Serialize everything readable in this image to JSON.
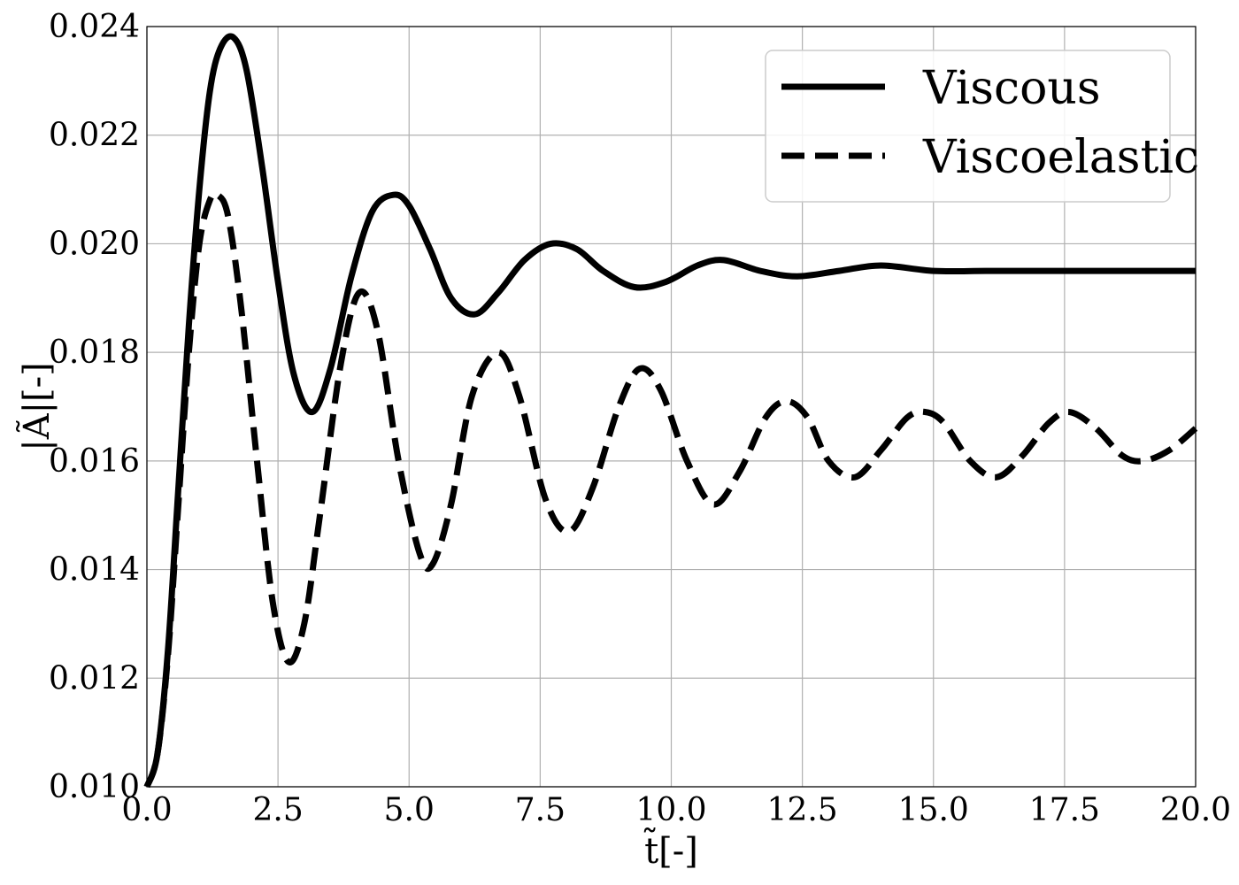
{
  "chart_data": {
    "type": "line",
    "xlabel": "t̃[-]",
    "ylabel": "|Ã|[-]",
    "xlim": [
      0.0,
      20.0
    ],
    "ylim": [
      0.01,
      0.024
    ],
    "x_ticks": [
      "0.0",
      "2.5",
      "5.0",
      "7.5",
      "10.0",
      "12.5",
      "15.0",
      "17.5",
      "20.0"
    ],
    "y_ticks": [
      "0.010",
      "0.012",
      "0.014",
      "0.016",
      "0.018",
      "0.020",
      "0.022",
      "0.024"
    ],
    "grid": true,
    "legend_position": "top-right",
    "series": [
      {
        "name": "Viscous",
        "style": "solid",
        "color": "#000000",
        "points": [
          [
            0.0,
            0.01
          ],
          [
            0.2,
            0.0106
          ],
          [
            0.4,
            0.0125
          ],
          [
            0.6,
            0.0155
          ],
          [
            0.8,
            0.0185
          ],
          [
            1.0,
            0.021
          ],
          [
            1.2,
            0.0228
          ],
          [
            1.4,
            0.0236
          ],
          [
            1.65,
            0.0238
          ],
          [
            1.9,
            0.0232
          ],
          [
            2.2,
            0.0214
          ],
          [
            2.5,
            0.0193
          ],
          [
            2.8,
            0.0176
          ],
          [
            3.15,
            0.0169
          ],
          [
            3.5,
            0.0177
          ],
          [
            3.9,
            0.0194
          ],
          [
            4.3,
            0.0206
          ],
          [
            4.7,
            0.0209
          ],
          [
            5.0,
            0.0207
          ],
          [
            5.4,
            0.0199
          ],
          [
            5.8,
            0.019
          ],
          [
            6.25,
            0.0187
          ],
          [
            6.7,
            0.0191
          ],
          [
            7.2,
            0.0197
          ],
          [
            7.7,
            0.02
          ],
          [
            8.2,
            0.0199
          ],
          [
            8.7,
            0.0195
          ],
          [
            9.3,
            0.0192
          ],
          [
            9.9,
            0.0193
          ],
          [
            10.5,
            0.0196
          ],
          [
            11.0,
            0.0197
          ],
          [
            11.7,
            0.0195
          ],
          [
            12.4,
            0.0194
          ],
          [
            13.2,
            0.0195
          ],
          [
            14.0,
            0.0196
          ],
          [
            15.0,
            0.0195
          ],
          [
            16.0,
            0.0195
          ],
          [
            17.0,
            0.0195
          ],
          [
            18.0,
            0.0195
          ],
          [
            19.0,
            0.0195
          ],
          [
            20.0,
            0.0195
          ]
        ]
      },
      {
        "name": "Viscoelastic",
        "style": "dashed",
        "color": "#000000",
        "points": [
          [
            0.0,
            0.01
          ],
          [
            0.2,
            0.0106
          ],
          [
            0.4,
            0.0124
          ],
          [
            0.6,
            0.0152
          ],
          [
            0.8,
            0.018
          ],
          [
            1.0,
            0.02
          ],
          [
            1.2,
            0.0208
          ],
          [
            1.35,
            0.0209
          ],
          [
            1.55,
            0.0205
          ],
          [
            1.8,
            0.0188
          ],
          [
            2.1,
            0.016
          ],
          [
            2.4,
            0.0134
          ],
          [
            2.7,
            0.0123
          ],
          [
            3.0,
            0.013
          ],
          [
            3.3,
            0.015
          ],
          [
            3.7,
            0.0178
          ],
          [
            4.05,
            0.0191
          ],
          [
            4.4,
            0.0184
          ],
          [
            4.8,
            0.016
          ],
          [
            5.2,
            0.0143
          ],
          [
            5.45,
            0.0141
          ],
          [
            5.8,
            0.0152
          ],
          [
            6.2,
            0.0172
          ],
          [
            6.7,
            0.018
          ],
          [
            7.1,
            0.0172
          ],
          [
            7.6,
            0.0153
          ],
          [
            8.05,
            0.0147
          ],
          [
            8.5,
            0.0155
          ],
          [
            9.0,
            0.017
          ],
          [
            9.4,
            0.0177
          ],
          [
            9.8,
            0.0173
          ],
          [
            10.3,
            0.016
          ],
          [
            10.8,
            0.0152
          ],
          [
            11.3,
            0.0158
          ],
          [
            11.8,
            0.0168
          ],
          [
            12.2,
            0.0171
          ],
          [
            12.6,
            0.0168
          ],
          [
            13.0,
            0.016
          ],
          [
            13.5,
            0.0157
          ],
          [
            14.0,
            0.0162
          ],
          [
            14.5,
            0.0168
          ],
          [
            14.85,
            0.0169
          ],
          [
            15.2,
            0.0167
          ],
          [
            15.7,
            0.016
          ],
          [
            16.2,
            0.0157
          ],
          [
            16.7,
            0.0161
          ],
          [
            17.2,
            0.0167
          ],
          [
            17.6,
            0.0169
          ],
          [
            18.1,
            0.0166
          ],
          [
            18.6,
            0.0161
          ],
          [
            19.0,
            0.016
          ],
          [
            19.5,
            0.0162
          ],
          [
            20.0,
            0.0166
          ]
        ]
      }
    ]
  }
}
